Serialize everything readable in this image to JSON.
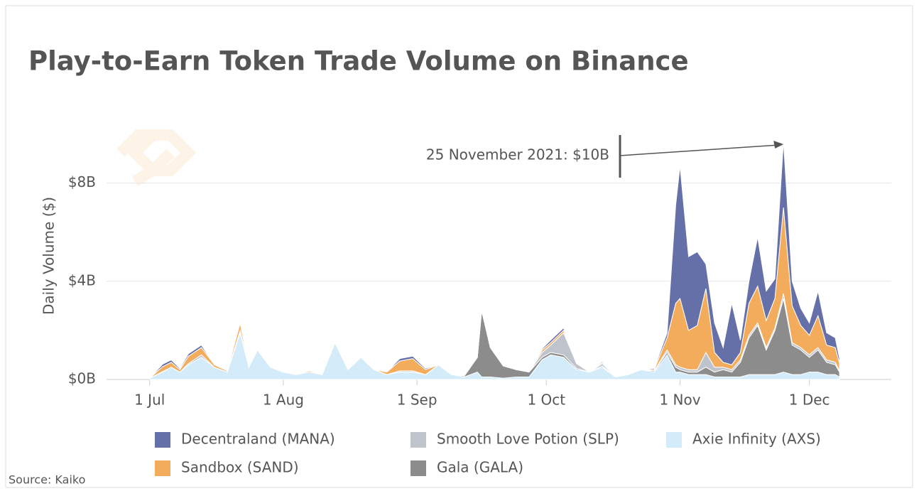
{
  "chart_data": {
    "type": "stacked_area",
    "title": "Play-to-Earn Token Trade Volume on Binance",
    "y_label": "Daily Volume ($)",
    "source": "Source: Kaiko",
    "annotations": [
      {
        "text": "25 November 2021: $10B",
        "x": "25 Nov"
      }
    ],
    "x": [
      "1 Jul",
      "4 Jul",
      "6 Jul",
      "8 Jul",
      "10 Jul",
      "13 Jul",
      "16 Jul",
      "19 Jul",
      "22 Jul",
      "24 Jul",
      "26 Jul",
      "29 Jul",
      "1 Aug",
      "4 Aug",
      "7 Aug",
      "10 Aug",
      "13 Aug",
      "16 Aug",
      "19 Aug",
      "22 Aug",
      "25 Aug",
      "28 Aug",
      "31 Aug",
      "3 Sep",
      "6 Sep",
      "9 Sep",
      "12 Sep",
      "15 Sep",
      "16 Sep",
      "18 Sep",
      "21 Sep",
      "24 Sep",
      "27 Sep",
      "30 Sep",
      "2 Oct",
      "5 Oct",
      "8 Oct",
      "11 Oct",
      "14 Oct",
      "17 Oct",
      "20 Oct",
      "23 Oct",
      "26 Oct",
      "29 Oct",
      "31 Oct",
      "1 Nov",
      "3 Nov",
      "5 Nov",
      "7 Nov",
      "9 Nov",
      "11 Nov",
      "13 Nov",
      "15 Nov",
      "17 Nov",
      "19 Nov",
      "21 Nov",
      "23 Nov",
      "25 Nov",
      "27 Nov",
      "29 Nov",
      "1 Dec",
      "3 Dec",
      "5 Dec",
      "7 Dec",
      "8 Dec"
    ],
    "series": [
      {
        "name": "Decentraland (MANA)",
        "color": "#6670a8",
        "values": [
          0,
          0.1,
          0.1,
          0.05,
          0.1,
          0.1,
          0,
          0,
          0.1,
          0,
          0,
          0,
          0,
          0,
          0,
          0,
          0,
          0,
          0,
          0,
          0,
          0.1,
          0.1,
          0.05,
          0,
          0,
          0,
          0,
          0,
          0,
          0,
          0,
          0,
          0.05,
          0.1,
          0.1,
          0,
          0,
          0.05,
          0,
          0,
          0,
          0.05,
          0.2,
          4,
          5.4,
          3,
          3,
          1,
          1.2,
          0.6,
          2.5,
          0.5,
          0.9,
          2,
          1.2,
          0.8,
          2.7,
          1,
          0.7,
          0.5,
          1,
          0.5,
          0.4,
          0.2
        ]
      },
      {
        "name": "Smooth Love Potion (SLP)",
        "color": "#bfc4cc",
        "values": [
          0,
          0.02,
          0,
          0,
          0.05,
          0.1,
          0,
          0,
          0.1,
          0,
          0,
          0,
          0,
          0,
          0,
          0,
          0,
          0,
          0,
          0,
          0,
          0.05,
          0.05,
          0,
          0,
          0,
          0,
          0,
          0.05,
          0,
          0,
          0,
          0,
          0.2,
          0.3,
          0.9,
          0.2,
          0,
          0.1,
          0,
          0,
          0,
          0,
          0.1,
          0.1,
          0.1,
          0.1,
          0.1,
          0.6,
          0.2,
          0.1,
          0.1,
          0.1,
          0.1,
          0.1,
          0.1,
          0.1,
          0.2,
          0.1,
          0.1,
          0.1,
          0.1,
          0.1,
          0.1,
          0.05
        ]
      },
      {
        "name": "Axie Infinity (AXS)",
        "color": "#d4ebfa",
        "values": [
          0.05,
          0.3,
          0.5,
          0.3,
          0.6,
          0.9,
          0.5,
          0.3,
          1.9,
          0.5,
          1.2,
          0.5,
          0.3,
          0.2,
          0.3,
          0.2,
          1.5,
          0.4,
          0.9,
          0.4,
          0.2,
          0.3,
          0.3,
          0.2,
          0.6,
          0.2,
          0.1,
          0.3,
          0.1,
          0.1,
          0.05,
          0.1,
          0.1,
          0.8,
          1,
          0.9,
          0.4,
          0.3,
          0.5,
          0.1,
          0.2,
          0.4,
          0.3,
          1,
          0.3,
          0.3,
          0.2,
          0.2,
          0.2,
          0.1,
          0.1,
          0.1,
          0.1,
          0.2,
          0.2,
          0.2,
          0.2,
          0.3,
          0.2,
          0.2,
          0.3,
          0.3,
          0.2,
          0.2,
          0.1
        ]
      },
      {
        "name": "Sandbox (SAND)",
        "color": "#f2ac5c",
        "values": [
          0,
          0.2,
          0.2,
          0.1,
          0.3,
          0.3,
          0.1,
          0.05,
          0.3,
          0,
          0.05,
          0,
          0,
          0,
          0.05,
          0,
          0,
          0,
          0,
          0,
          0.1,
          0.4,
          0.5,
          0.2,
          0,
          0,
          0,
          0,
          0.05,
          0,
          0,
          0,
          0,
          0.1,
          0.1,
          0.1,
          0,
          0,
          0.05,
          0,
          0,
          0,
          0.05,
          0.5,
          2.5,
          2.8,
          1.6,
          1.8,
          2.6,
          0.6,
          0.2,
          0.2,
          0.3,
          1.3,
          1.5,
          1.1,
          1.2,
          3.5,
          1.5,
          0.9,
          0.8,
          1.3,
          0.6,
          0.6,
          0.3
        ]
      },
      {
        "name": "Gala (GALA)",
        "color": "#8c8c8c",
        "values": [
          0,
          0,
          0,
          0,
          0,
          0,
          0,
          0,
          0,
          0,
          0,
          0,
          0,
          0,
          0,
          0,
          0,
          0,
          0,
          0,
          0,
          0,
          0,
          0,
          0,
          0,
          0.05,
          0.6,
          2.7,
          1.2,
          0.5,
          0.3,
          0.2,
          0.1,
          0.1,
          0.1,
          0.05,
          0,
          0.05,
          0,
          0,
          0,
          0.05,
          0.1,
          0.2,
          0.1,
          0.1,
          0.1,
          0.3,
          0.2,
          0.3,
          0.2,
          0.6,
          1.5,
          2,
          1,
          1.8,
          3,
          1.2,
          1,
          0.6,
          0.9,
          0.5,
          0.4,
          0.2
        ]
      }
    ],
    "xlim": [
      "21 Jun",
      "20 Dec"
    ],
    "xticks": [
      "1 Jul",
      "1 Aug",
      "1 Sep",
      "1 Oct",
      "1 Nov",
      "1 Dec"
    ],
    "ylim": [
      0,
      10.1
    ],
    "yticks": [
      {
        "value": 0,
        "label": "$0B"
      },
      {
        "value": 4,
        "label": "$4B"
      },
      {
        "value": 8,
        "label": "$8B"
      }
    ],
    "grid": true
  }
}
